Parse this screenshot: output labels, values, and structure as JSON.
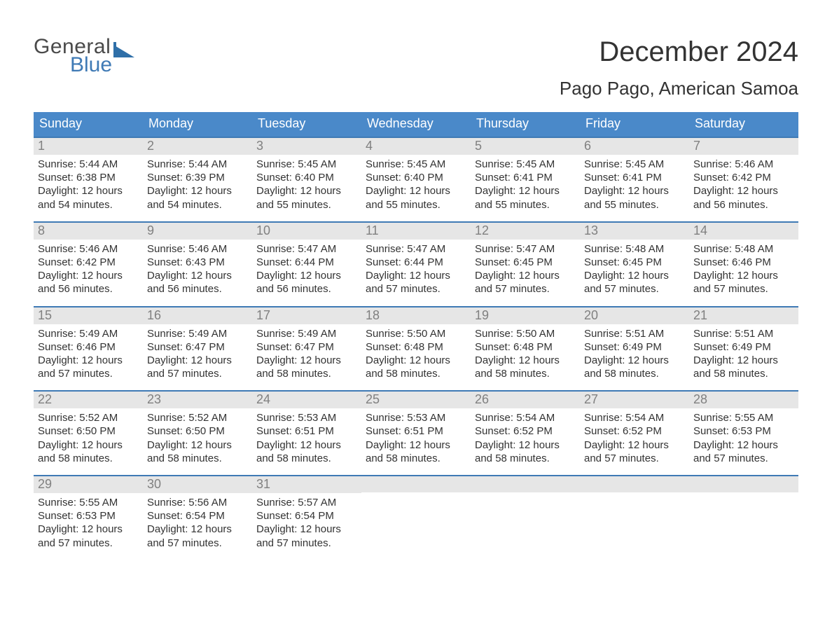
{
  "brand": {
    "word1": "General",
    "word2": "Blue",
    "mark_color": "#2f6fa8"
  },
  "header": {
    "month_title": "December 2024",
    "location": "Pago Pago, American Samoa"
  },
  "colors": {
    "header_row": "#4a89c9",
    "rule": "#3f7ab5",
    "day_num_bg": "#e6e6e6",
    "day_num_text": "#808080",
    "body_text": "#333333",
    "background": "#ffffff"
  },
  "weekday_labels": [
    "Sunday",
    "Monday",
    "Tuesday",
    "Wednesday",
    "Thursday",
    "Friday",
    "Saturday"
  ],
  "labels": {
    "sunrise_prefix": "Sunrise: ",
    "sunset_prefix": "Sunset: ",
    "daylight_prefix": "Daylight: "
  },
  "weeks": [
    [
      {
        "n": 1,
        "sunrise": "5:44 AM",
        "sunset": "6:38 PM",
        "daylight": "12 hours and 54 minutes."
      },
      {
        "n": 2,
        "sunrise": "5:44 AM",
        "sunset": "6:39 PM",
        "daylight": "12 hours and 54 minutes."
      },
      {
        "n": 3,
        "sunrise": "5:45 AM",
        "sunset": "6:40 PM",
        "daylight": "12 hours and 55 minutes."
      },
      {
        "n": 4,
        "sunrise": "5:45 AM",
        "sunset": "6:40 PM",
        "daylight": "12 hours and 55 minutes."
      },
      {
        "n": 5,
        "sunrise": "5:45 AM",
        "sunset": "6:41 PM",
        "daylight": "12 hours and 55 minutes."
      },
      {
        "n": 6,
        "sunrise": "5:45 AM",
        "sunset": "6:41 PM",
        "daylight": "12 hours and 55 minutes."
      },
      {
        "n": 7,
        "sunrise": "5:46 AM",
        "sunset": "6:42 PM",
        "daylight": "12 hours and 56 minutes."
      }
    ],
    [
      {
        "n": 8,
        "sunrise": "5:46 AM",
        "sunset": "6:42 PM",
        "daylight": "12 hours and 56 minutes."
      },
      {
        "n": 9,
        "sunrise": "5:46 AM",
        "sunset": "6:43 PM",
        "daylight": "12 hours and 56 minutes."
      },
      {
        "n": 10,
        "sunrise": "5:47 AM",
        "sunset": "6:44 PM",
        "daylight": "12 hours and 56 minutes."
      },
      {
        "n": 11,
        "sunrise": "5:47 AM",
        "sunset": "6:44 PM",
        "daylight": "12 hours and 57 minutes."
      },
      {
        "n": 12,
        "sunrise": "5:47 AM",
        "sunset": "6:45 PM",
        "daylight": "12 hours and 57 minutes."
      },
      {
        "n": 13,
        "sunrise": "5:48 AM",
        "sunset": "6:45 PM",
        "daylight": "12 hours and 57 minutes."
      },
      {
        "n": 14,
        "sunrise": "5:48 AM",
        "sunset": "6:46 PM",
        "daylight": "12 hours and 57 minutes."
      }
    ],
    [
      {
        "n": 15,
        "sunrise": "5:49 AM",
        "sunset": "6:46 PM",
        "daylight": "12 hours and 57 minutes."
      },
      {
        "n": 16,
        "sunrise": "5:49 AM",
        "sunset": "6:47 PM",
        "daylight": "12 hours and 57 minutes."
      },
      {
        "n": 17,
        "sunrise": "5:49 AM",
        "sunset": "6:47 PM",
        "daylight": "12 hours and 58 minutes."
      },
      {
        "n": 18,
        "sunrise": "5:50 AM",
        "sunset": "6:48 PM",
        "daylight": "12 hours and 58 minutes."
      },
      {
        "n": 19,
        "sunrise": "5:50 AM",
        "sunset": "6:48 PM",
        "daylight": "12 hours and 58 minutes."
      },
      {
        "n": 20,
        "sunrise": "5:51 AM",
        "sunset": "6:49 PM",
        "daylight": "12 hours and 58 minutes."
      },
      {
        "n": 21,
        "sunrise": "5:51 AM",
        "sunset": "6:49 PM",
        "daylight": "12 hours and 58 minutes."
      }
    ],
    [
      {
        "n": 22,
        "sunrise": "5:52 AM",
        "sunset": "6:50 PM",
        "daylight": "12 hours and 58 minutes."
      },
      {
        "n": 23,
        "sunrise": "5:52 AM",
        "sunset": "6:50 PM",
        "daylight": "12 hours and 58 minutes."
      },
      {
        "n": 24,
        "sunrise": "5:53 AM",
        "sunset": "6:51 PM",
        "daylight": "12 hours and 58 minutes."
      },
      {
        "n": 25,
        "sunrise": "5:53 AM",
        "sunset": "6:51 PM",
        "daylight": "12 hours and 58 minutes."
      },
      {
        "n": 26,
        "sunrise": "5:54 AM",
        "sunset": "6:52 PM",
        "daylight": "12 hours and 58 minutes."
      },
      {
        "n": 27,
        "sunrise": "5:54 AM",
        "sunset": "6:52 PM",
        "daylight": "12 hours and 57 minutes."
      },
      {
        "n": 28,
        "sunrise": "5:55 AM",
        "sunset": "6:53 PM",
        "daylight": "12 hours and 57 minutes."
      }
    ],
    [
      {
        "n": 29,
        "sunrise": "5:55 AM",
        "sunset": "6:53 PM",
        "daylight": "12 hours and 57 minutes."
      },
      {
        "n": 30,
        "sunrise": "5:56 AM",
        "sunset": "6:54 PM",
        "daylight": "12 hours and 57 minutes."
      },
      {
        "n": 31,
        "sunrise": "5:57 AM",
        "sunset": "6:54 PM",
        "daylight": "12 hours and 57 minutes."
      },
      null,
      null,
      null,
      null
    ]
  ]
}
